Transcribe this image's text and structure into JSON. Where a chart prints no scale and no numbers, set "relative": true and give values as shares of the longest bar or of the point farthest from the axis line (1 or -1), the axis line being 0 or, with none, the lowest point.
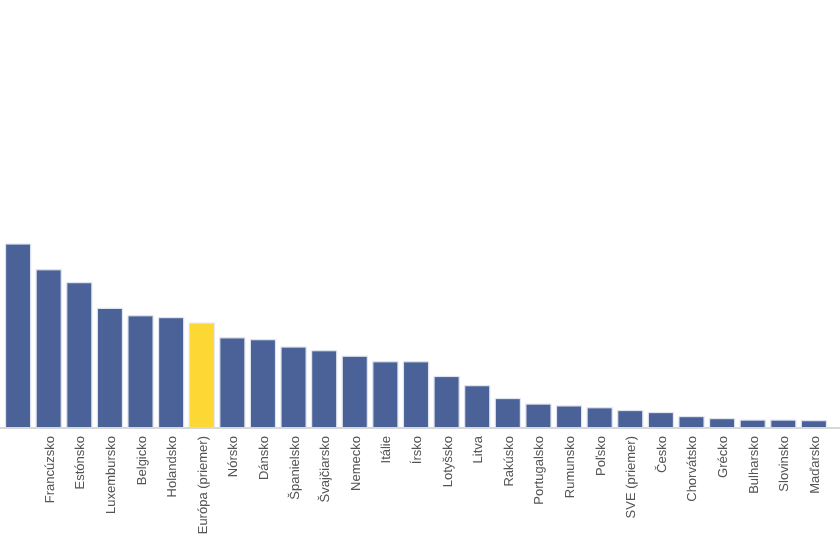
{
  "chart_data": {
    "type": "bar",
    "relative": true,
    "categories": [
      null,
      "Francúzsko",
      "Estónsko",
      "Luxembursko",
      "Belgicko",
      "Holandsko",
      "Európa (priemer)",
      "Nórsko",
      "Dánsko",
      "Španielsko",
      "Švajčiarsko",
      "Nemecko",
      "Itálie",
      "Írsko",
      "Lotyšsko",
      "Litva",
      "Rakúsko",
      "Portugalsko",
      "Rumunsko",
      "Poľsko",
      "SVE (priemer)",
      "Česko",
      "Chorvátsko",
      "Grécko",
      "Bulharsko",
      "Slovinsko",
      "Maďarsko"
    ],
    "values": [
      1,
      0.86,
      0.79,
      0.65,
      0.61,
      0.6,
      0.57,
      0.49,
      0.48,
      0.44,
      0.42,
      0.39,
      0.36,
      0.36,
      0.28,
      0.23,
      0.16,
      0.13,
      0.12,
      0.11,
      0.095,
      0.084,
      0.062,
      0.051,
      0.043,
      0.043,
      0.04
    ],
    "colors": [
      "#4a6298",
      "#4a6298",
      "#4a6298",
      "#4a6298",
      "#4a6298",
      "#4a6298",
      "#fdd835",
      "#4a6298",
      "#4a6298",
      "#4a6298",
      "#4a6298",
      "#4a6298",
      "#4a6298",
      "#4a6298",
      "#4a6298",
      "#4a6298",
      "#4a6298",
      "#4a6298",
      "#4a6298",
      "#4a6298",
      "#4a6298",
      "#4a6298",
      "#4a6298",
      "#4a6298",
      "#4a6298",
      "#4a6298",
      "#4a6298"
    ]
  }
}
